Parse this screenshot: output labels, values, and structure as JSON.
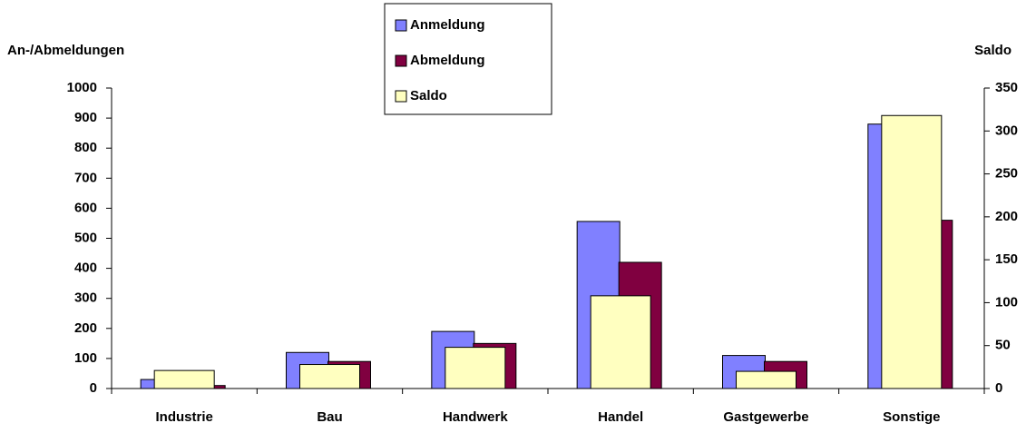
{
  "chart_data": {
    "type": "bar",
    "y_label": "An-/Abmeldungen",
    "y2_label": "Saldo",
    "categories": [
      "Industrie",
      "Bau",
      "Handwerk",
      "Handel",
      "Gastgewerbe",
      "Sonstige"
    ],
    "series": [
      {
        "name": "Anmeldung",
        "color": "#8080ff",
        "values": [
          30,
          120,
          190,
          556,
          110,
          880
        ]
      },
      {
        "name": "Abmeldung",
        "color": "#800040",
        "values": [
          10,
          90,
          150,
          420,
          90,
          560
        ]
      },
      {
        "name": "Saldo",
        "color": "#ffffc0",
        "axis": "y2",
        "values": [
          21,
          28,
          48,
          108,
          20,
          318
        ]
      }
    ],
    "ylim": [
      0,
      1000
    ],
    "yticks": [
      0,
      100,
      200,
      300,
      400,
      500,
      600,
      700,
      800,
      900,
      1000
    ],
    "y2lim": [
      0,
      350
    ],
    "y2ticks": [
      0,
      50,
      100,
      150,
      200,
      250,
      300,
      350
    ],
    "grid": false,
    "legend": "top"
  }
}
